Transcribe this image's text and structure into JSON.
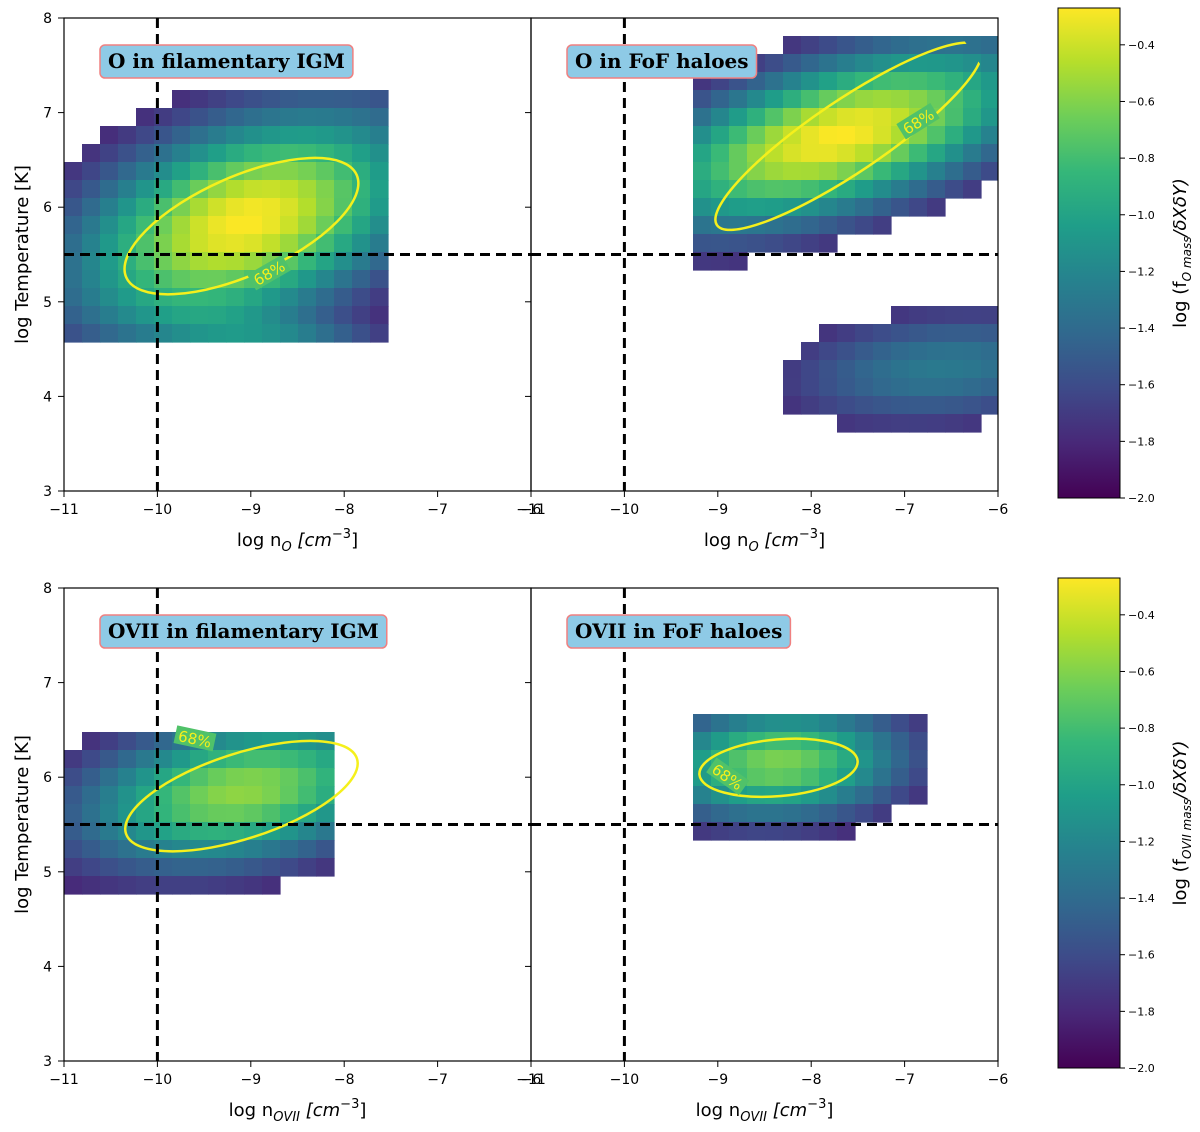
{
  "chart_data": {
    "type": "heatmap",
    "description_free": true,
    "xlim": [
      -11,
      -6
    ],
    "ylim": [
      3,
      8
    ],
    "xticks": [
      -11,
      -10,
      -9,
      -8,
      -7,
      -6
    ],
    "xtick_labels": [
      "−11",
      "−10",
      "−9",
      "−8",
      "−7",
      "−6"
    ],
    "yticks": [
      3,
      4,
      5,
      6,
      7,
      8
    ],
    "ytick_labels": [
      "3",
      "4",
      "5",
      "6",
      "7",
      "8"
    ],
    "reference_lines": {
      "log_n": -10,
      "log_T": 5.5
    },
    "colorbar": {
      "range": [
        -2.0,
        -0.27
      ],
      "ticks": [
        -2.0,
        -1.8,
        -1.6,
        -1.4,
        -1.2,
        -1.0,
        -0.8,
        -0.6,
        -0.4
      ],
      "tick_labels": [
        "−2.0",
        "−1.8",
        "−1.6",
        "−1.4",
        "−1.2",
        "−1.0",
        "−0.8",
        "−0.6",
        "−0.4"
      ],
      "colormap": [
        "#440154",
        "#482878",
        "#3e4a89",
        "#31688e",
        "#26828e",
        "#1f9e89",
        "#35b779",
        "#6ece58",
        "#b5de2b",
        "#fde725"
      ]
    },
    "contour_color": "#f5f01c",
    "rows": [
      {
        "name": "O",
        "ylabel": "log Temperature [K]",
        "xlabel_prefix": "log n",
        "xlabel_sub": "O",
        "xlabel_unit": "[cm",
        "xlabel_exp": "−3",
        "xlabel_close": "]",
        "colorbar_label_prefix": "log (f",
        "colorbar_label_sub": "O mass",
        "colorbar_label_suffix": "/δXδY)",
        "panels": [
          {
            "title": "O in filamentary IGM",
            "contour_label": "68%",
            "contour_label_at": [
              -8.8,
              5.3
            ],
            "contour_label_angle": -30,
            "contour": {
              "center": [
                -9.1,
                5.8
              ],
              "rx": 1.35,
              "ry": 0.52,
              "angle": 24
            },
            "blobs": [
              {
                "x": -9.05,
                "y": 5.85,
                "sx": 1.15,
                "sy": 0.72,
                "rho": 0.4,
                "amp": 1.0
              },
              {
                "x": -8.4,
                "y": 4.45,
                "sx": 1.0,
                "sy": 0.3,
                "rho": -0.6,
                "amp": 0.32
              }
            ],
            "cutoff": 0.06,
            "domain": {
              "x": [
                -10.95,
                -7.6
              ],
              "y": [
                4.5,
                7.3
              ]
            }
          },
          {
            "title": "O in FoF haloes",
            "contour_label": "68%",
            "contour_label_at": [
              -6.85,
              6.9
            ],
            "contour_label_angle": -32,
            "contour": {
              "center": [
                -7.6,
                6.75
              ],
              "rx": 1.7,
              "ry": 0.38,
              "angle": 34
            },
            "blobs": [
              {
                "x": -7.7,
                "y": 6.75,
                "sx": 1.3,
                "sy": 0.6,
                "rho": 0.55,
                "amp": 1.0
              },
              {
                "x": -6.6,
                "y": 4.3,
                "sx": 1.1,
                "sy": 0.4,
                "rho": 0.2,
                "amp": 0.3
              }
            ],
            "cutoff": 0.08,
            "domain": {
              "x": [
                -9.3,
                -6.0
              ],
              "y": [
                3.6,
                7.75
              ]
            }
          }
        ]
      },
      {
        "name": "OVII",
        "ylabel": "log Temperature [K]",
        "xlabel_prefix": "log n",
        "xlabel_sub": "OVII",
        "xlabel_unit": "[cm",
        "xlabel_exp": "−3",
        "xlabel_close": "]",
        "colorbar_label_prefix": "log (f",
        "colorbar_label_sub": "OVII mass",
        "colorbar_label_suffix": "/δXδY)",
        "panels": [
          {
            "title": "OVII in filamentary IGM",
            "contour_label": "68%",
            "contour_label_at": [
              -9.6,
              6.4
            ],
            "contour_label_angle": 12,
            "contour": {
              "center": [
                -9.1,
                5.8
              ],
              "rx": 1.3,
              "ry": 0.45,
              "angle": 18
            },
            "blobs": [
              {
                "x": -9.1,
                "y": 5.85,
                "sx": 1.1,
                "sy": 0.5,
                "rho": 0.3,
                "amp": 0.78
              }
            ],
            "cutoff": 0.06,
            "domain": {
              "x": [
                -11.0,
                -8.2
              ],
              "y": [
                4.6,
                6.5
              ]
            }
          },
          {
            "title": "OVII in FoF haloes",
            "contour_label": "68%",
            "contour_label_at": [
              -8.9,
              6.0
            ],
            "contour_label_angle": 35,
            "contour": {
              "center": [
                -8.35,
                6.1
              ],
              "rx": 0.85,
              "ry": 0.3,
              "angle": 5
            },
            "blobs": [
              {
                "x": -8.35,
                "y": 6.15,
                "sx": 0.85,
                "sy": 0.38,
                "rho": 0.1,
                "amp": 0.74
              }
            ],
            "cutoff": 0.07,
            "domain": {
              "x": [
                -9.3,
                -6.8
              ],
              "y": [
                5.4,
                6.7
              ]
            }
          }
        ]
      }
    ]
  }
}
